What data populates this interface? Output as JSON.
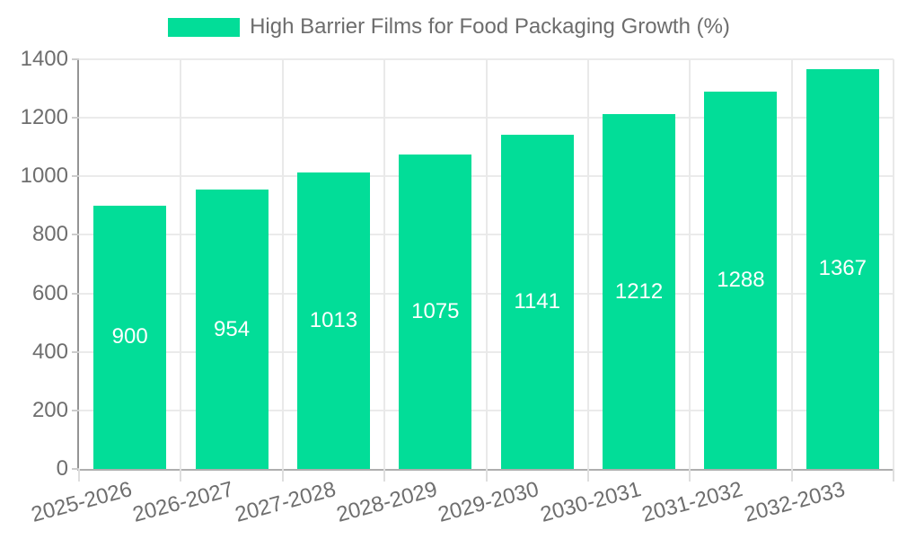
{
  "chart_data": {
    "type": "bar",
    "title": "High Barrier Films for Food Packaging Growth (%)",
    "categories": [
      "2025-2026",
      "2026-2027",
      "2027-2028",
      "2028-2029",
      "2029-2030",
      "2030-2031",
      "2031-2032",
      "2032-2033"
    ],
    "values": [
      900,
      954,
      1013,
      1075,
      1141,
      1212,
      1288,
      1367
    ],
    "xlabel": "",
    "ylabel": "",
    "ylim": [
      0,
      1400
    ],
    "ytick_step": 200,
    "grid": true,
    "legend_position": "top",
    "colors": {
      "bar": "#02dd98",
      "value_label": "#ffffff",
      "axis_text": "#6e6e6e",
      "legend_text": "#6d6d6d",
      "gridline": "#ebebeb",
      "background": "#ffffff"
    }
  }
}
